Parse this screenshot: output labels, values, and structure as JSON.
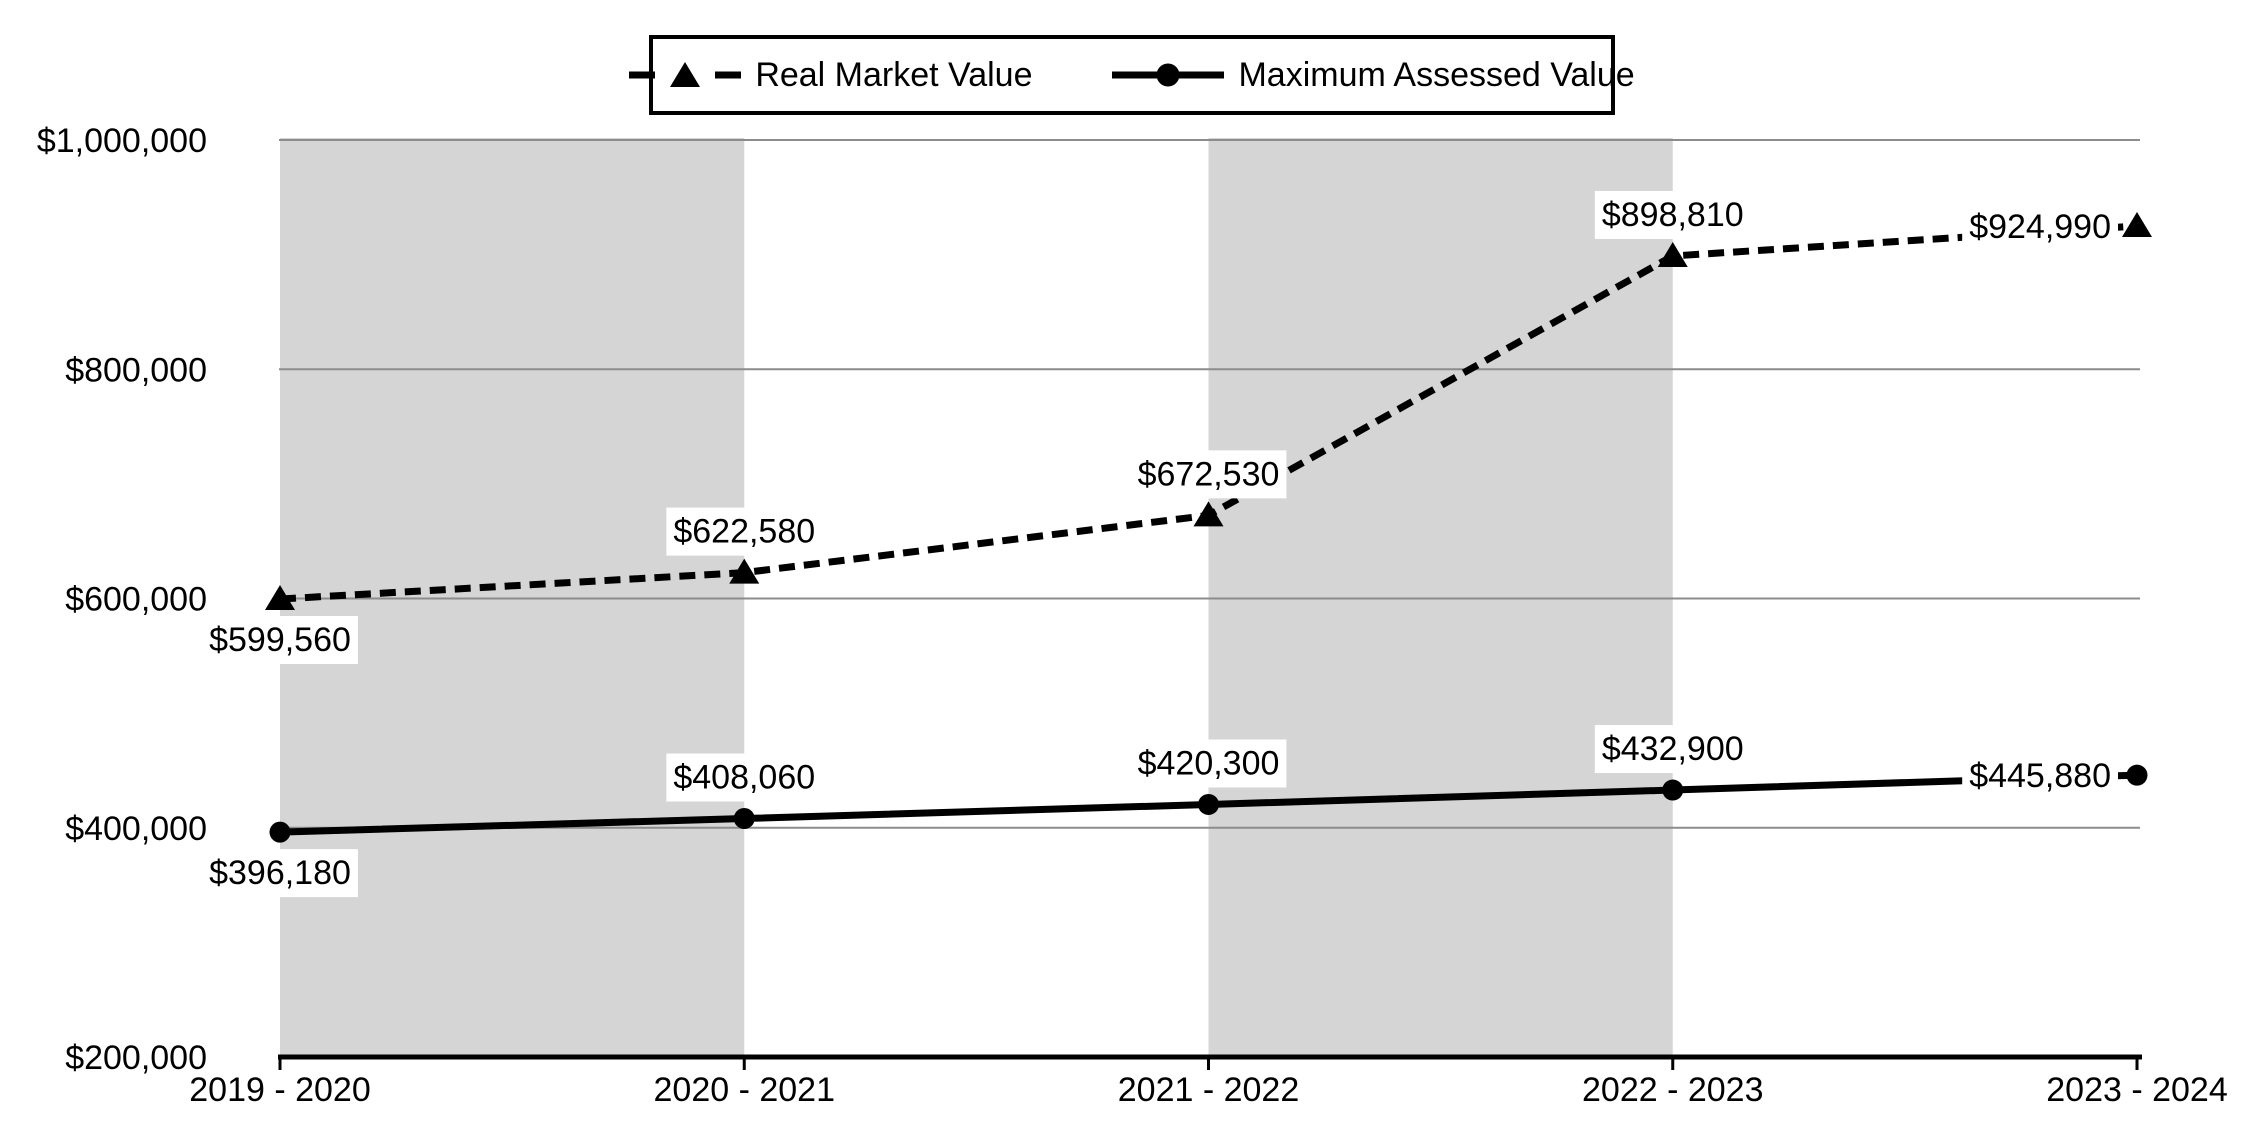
{
  "chart_data": {
    "type": "line",
    "categories": [
      "2019 - 2020",
      "2020 - 2021",
      "2021 - 2022",
      "2022 - 2023",
      "2023 - 2024"
    ],
    "series": [
      {
        "name": "Real Market Value",
        "line_style": "dashed",
        "marker": "triangle",
        "values": [
          599560,
          622580,
          672530,
          898810,
          924990
        ],
        "labels": [
          "$599,560",
          "$622,580",
          "$672,530",
          "$898,810",
          "$924,990"
        ],
        "label_positions": [
          "below",
          "above",
          "above",
          "above",
          "left"
        ]
      },
      {
        "name": "Maximum Assessed Value",
        "line_style": "solid",
        "marker": "circle",
        "values": [
          396180,
          408060,
          420300,
          432900,
          445880
        ],
        "labels": [
          "$396,180",
          "$408,060",
          "$420,300",
          "$432,900",
          "$445,880"
        ],
        "label_positions": [
          "below",
          "above",
          "above",
          "above",
          "left"
        ]
      }
    ],
    "ylim": [
      200000,
      1000000
    ],
    "yticks": [
      200000,
      400000,
      600000,
      800000,
      1000000
    ],
    "ytick_labels": [
      "$200,000",
      "$400,000",
      "$600,000",
      "$800,000",
      "$1,000,000"
    ],
    "grid": "horizontal",
    "legend_position": "top",
    "shaded_bands": [
      [
        0,
        1
      ],
      [
        2,
        3
      ]
    ],
    "colors": {
      "series": "#000000",
      "band": "#d5d5d5",
      "gridline": "#8c8c8c",
      "axis": "#000000",
      "label_bg": "#ffffff",
      "text": "#000000"
    }
  }
}
